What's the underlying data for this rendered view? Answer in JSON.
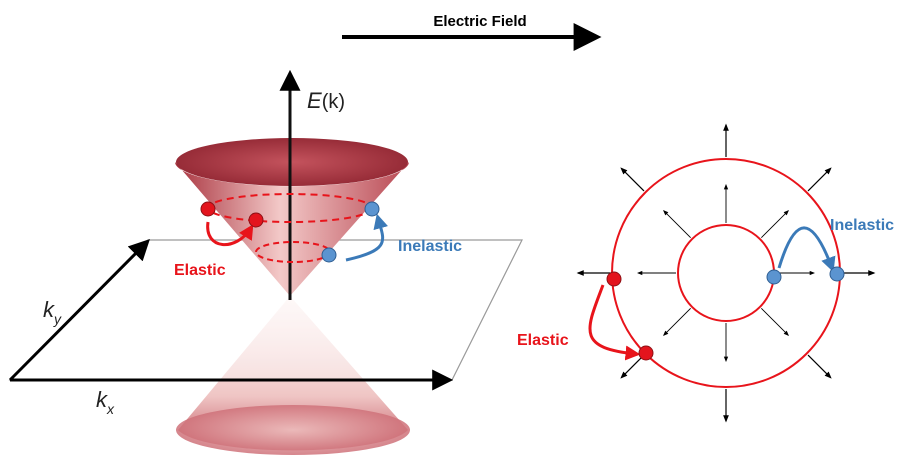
{
  "header": {
    "title": "Electric Field"
  },
  "cone_diagram": {
    "energy_axis_label_main": "E",
    "energy_axis_label_arg": "(k)",
    "ky_label_main": "k",
    "ky_label_sub": "y",
    "kx_label_main": "k",
    "kx_label_sub": "x",
    "elastic_label": "Elastic",
    "inelastic_label": "Inelastic"
  },
  "ring_diagram": {
    "elastic_label": "Elastic",
    "inelastic_label": "Inelastic"
  },
  "colors": {
    "elastic": "#e8141b",
    "inelastic": "#3b7ab8",
    "electron_red": "#e3141d",
    "electron_blue": "#5b94d0",
    "ring": "#e8141b",
    "cone_dark": "#b5454f",
    "cone_light": "#f6d3d2"
  }
}
